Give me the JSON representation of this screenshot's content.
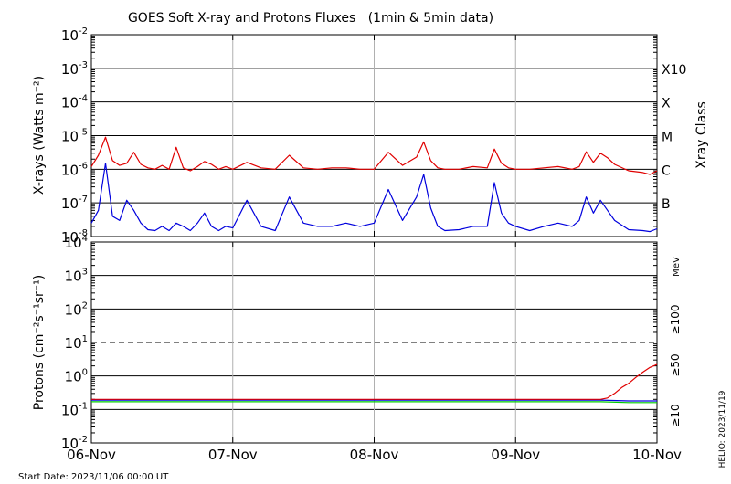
{
  "chart_data": [
    {
      "type": "line",
      "title": "GOES Soft X-ray and Protons Fluxes   (1min & 5min data)",
      "ylabel": "X-rays (Watts m⁻²)",
      "yscale": "log",
      "ylim": [
        1e-08,
        0.01
      ],
      "y_ticks": [
        {
          "value": 1e-08,
          "mant": "10",
          "exp": "-8"
        },
        {
          "value": 1e-07,
          "mant": "10",
          "exp": "-7"
        },
        {
          "value": 1e-06,
          "mant": "10",
          "exp": "-6"
        },
        {
          "value": 1e-05,
          "mant": "10",
          "exp": "-5"
        },
        {
          "value": 0.0001,
          "mant": "10",
          "exp": "-4"
        },
        {
          "value": 0.001,
          "mant": "10",
          "exp": "-3"
        },
        {
          "value": 0.01,
          "mant": "10",
          "exp": "-2"
        }
      ],
      "right_axis_title": "Xray Class",
      "class_labels": [
        {
          "label": "B",
          "value": 1e-07
        },
        {
          "label": "C",
          "value": 1e-06
        },
        {
          "label": "M",
          "value": 1e-05
        },
        {
          "label": "X",
          "value": 0.0001
        },
        {
          "label": "X10",
          "value": 0.001
        }
      ],
      "series": [
        {
          "color": "#e00000",
          "x": [
            0.0,
            0.05,
            0.1,
            0.15,
            0.2,
            0.25,
            0.3,
            0.35,
            0.4,
            0.45,
            0.5,
            0.55,
            0.6,
            0.65,
            0.7,
            0.75,
            0.8,
            0.85,
            0.9,
            0.95,
            1.0,
            1.1,
            1.2,
            1.3,
            1.4,
            1.5,
            1.6,
            1.7,
            1.8,
            1.9,
            2.0,
            2.1,
            2.2,
            2.3,
            2.35,
            2.4,
            2.45,
            2.5,
            2.6,
            2.7,
            2.8,
            2.85,
            2.9,
            2.95,
            3.0,
            3.1,
            3.2,
            3.3,
            3.4,
            3.45,
            3.5,
            3.55,
            3.6,
            3.65,
            3.7,
            3.8,
            3.9,
            3.95,
            4.0
          ],
          "y": [
            1.2e-06,
            2.6e-06,
            9e-06,
            1.8e-06,
            1.3e-06,
            1.5e-06,
            3.2e-06,
            1.4e-06,
            1.1e-06,
            1e-06,
            1.3e-06,
            1e-06,
            4.5e-06,
            1.1e-06,
            9e-07,
            1.2e-06,
            1.7e-06,
            1.4e-06,
            1e-06,
            1.2e-06,
            1e-06,
            1.6e-06,
            1.1e-06,
            1e-06,
            2.6e-06,
            1.1e-06,
            1e-06,
            1.1e-06,
            1.1e-06,
            1e-06,
            1e-06,
            3.2e-06,
            1.3e-06,
            2.3e-06,
            6.5e-06,
            1.8e-06,
            1.1e-06,
            1e-06,
            1e-06,
            1.2e-06,
            1.1e-06,
            4e-06,
            1.5e-06,
            1.1e-06,
            1e-06,
            1e-06,
            1.1e-06,
            1.2e-06,
            1e-06,
            1.2e-06,
            3.3e-06,
            1.6e-06,
            3e-06,
            2.2e-06,
            1.4e-06,
            9e-07,
            8e-07,
            7e-07,
            9e-07
          ]
        },
        {
          "color": "#0000dd",
          "x": [
            0.0,
            0.05,
            0.1,
            0.15,
            0.2,
            0.25,
            0.3,
            0.35,
            0.4,
            0.45,
            0.5,
            0.55,
            0.6,
            0.65,
            0.7,
            0.75,
            0.8,
            0.85,
            0.9,
            0.95,
            1.0,
            1.1,
            1.2,
            1.3,
            1.4,
            1.5,
            1.6,
            1.7,
            1.8,
            1.9,
            2.0,
            2.1,
            2.2,
            2.3,
            2.35,
            2.4,
            2.45,
            2.5,
            2.6,
            2.7,
            2.8,
            2.85,
            2.9,
            2.95,
            3.0,
            3.1,
            3.2,
            3.3,
            3.4,
            3.45,
            3.5,
            3.55,
            3.6,
            3.65,
            3.7,
            3.8,
            3.9,
            3.95,
            4.0
          ],
          "y": [
            2.5e-08,
            6e-08,
            1.5e-06,
            4e-08,
            3e-08,
            1.2e-07,
            6e-08,
            2.5e-08,
            1.6e-08,
            1.5e-08,
            2e-08,
            1.5e-08,
            2.5e-08,
            2e-08,
            1.5e-08,
            2.5e-08,
            5e-08,
            2e-08,
            1.5e-08,
            2e-08,
            1.8e-08,
            1.2e-07,
            2e-08,
            1.5e-08,
            1.5e-07,
            2.5e-08,
            2e-08,
            2e-08,
            2.5e-08,
            2e-08,
            2.5e-08,
            2.5e-07,
            3e-08,
            1.5e-07,
            7e-07,
            7e-08,
            2e-08,
            1.5e-08,
            1.6e-08,
            2e-08,
            2e-08,
            4e-07,
            5e-08,
            2.5e-08,
            2e-08,
            1.5e-08,
            2e-08,
            2.5e-08,
            2e-08,
            3e-08,
            1.5e-07,
            5e-08,
            1.2e-07,
            6e-08,
            3e-08,
            1.6e-08,
            1.5e-08,
            1.4e-08,
            1.7e-08
          ]
        }
      ]
    },
    {
      "type": "line",
      "ylabel": "Protons (cm⁻²s⁻¹sr⁻¹)",
      "yscale": "log",
      "ylim": [
        0.01,
        10000
      ],
      "y_ticks": [
        {
          "value": 0.01,
          "mant": "10",
          "exp": "-2"
        },
        {
          "value": 0.1,
          "mant": "10",
          "exp": "-1"
        },
        {
          "value": 1,
          "mant": "10",
          "exp": "0"
        },
        {
          "value": 10,
          "mant": "10",
          "exp": "1"
        },
        {
          "value": 100,
          "mant": "10",
          "exp": "2"
        },
        {
          "value": 1000,
          "mant": "10",
          "exp": "3"
        },
        {
          "value": 10000,
          "mant": "10",
          "exp": "4"
        }
      ],
      "threshold_value": 10,
      "energy_unit": "MeV",
      "series": [
        {
          "name": "≥10",
          "color": "#e00000",
          "x": [
            0,
            0.5,
            1,
            1.5,
            2,
            2.5,
            3,
            3.3,
            3.6,
            3.65,
            3.7,
            3.75,
            3.8,
            3.85,
            3.9,
            3.95,
            4.0
          ],
          "y": [
            0.2,
            0.2,
            0.2,
            0.2,
            0.2,
            0.2,
            0.2,
            0.2,
            0.2,
            0.22,
            0.3,
            0.45,
            0.6,
            0.9,
            1.3,
            1.8,
            2.2
          ]
        },
        {
          "name": "≥50",
          "color": "#0000dd",
          "x": [
            0,
            1,
            2,
            3,
            3.6,
            3.8,
            4.0
          ],
          "y": [
            0.19,
            0.19,
            0.19,
            0.19,
            0.19,
            0.18,
            0.18
          ]
        },
        {
          "name": "≥100",
          "color": "#00cc00",
          "x": [
            0,
            1,
            2,
            3,
            3.6,
            3.8,
            4.0
          ],
          "y": [
            0.17,
            0.17,
            0.17,
            0.17,
            0.17,
            0.16,
            0.16
          ]
        }
      ]
    }
  ],
  "x_ticks": [
    {
      "value": 0,
      "label": "06-Nov"
    },
    {
      "value": 1,
      "label": "07-Nov"
    },
    {
      "value": 2,
      "label": "08-Nov"
    },
    {
      "value": 3,
      "label": "09-Nov"
    },
    {
      "value": 4,
      "label": "10-Nov"
    }
  ],
  "start_date": "Start Date: 2023/11/06 00:00 UT",
  "credit": "HELIO: 2023/11/19"
}
